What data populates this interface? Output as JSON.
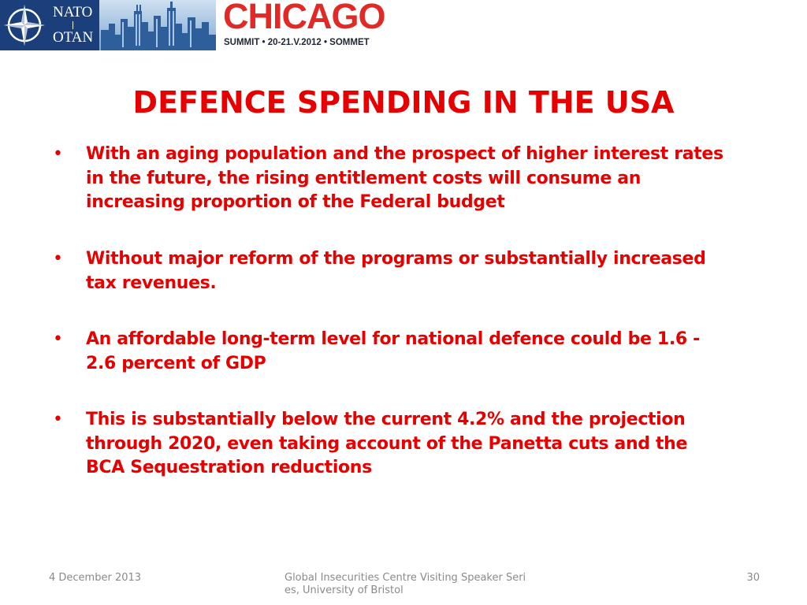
{
  "banner": {
    "nato_name": "NATO",
    "otan_name": "OTAN",
    "summit_title": "CHICAGO",
    "summit_subtitle": "SUMMIT • 20-21.V.2012 • SOMMET",
    "colors": {
      "nato_blue": "#1b3f7a",
      "chicago_red": "#e12a26"
    },
    "icons": [
      "nato-compass-icon",
      "city-skyline-icon"
    ]
  },
  "slide": {
    "title": "DEFENCE SPENDING IN THE USA",
    "text_color": "#e60000",
    "bullet_marker": "•",
    "bullets": [
      {
        "lines": [
          "With an aging population and the prospect of higher interest rates",
          "in the future, the rising entitlement costs will consume an",
          "increasing proportion of the Federal budget"
        ]
      },
      {
        "lines": [
          "Without major reform of the programs or substantially increased",
          "tax revenues."
        ]
      },
      {
        "lines": [
          "An affordable long-term level for national defence could be 1.6 -",
          "2.6 percent of GDP"
        ]
      },
      {
        "lines": [
          "This is substantially below the current 4.2% and the projection",
          "through 2020, even taking account of the Panetta cuts and the",
          "BCA Sequestration reductions"
        ]
      }
    ]
  },
  "footer": {
    "date": "4 December 2013",
    "center": "Global Insecurities Centre Visiting Speaker Series, University of Bristol",
    "page": "30"
  }
}
